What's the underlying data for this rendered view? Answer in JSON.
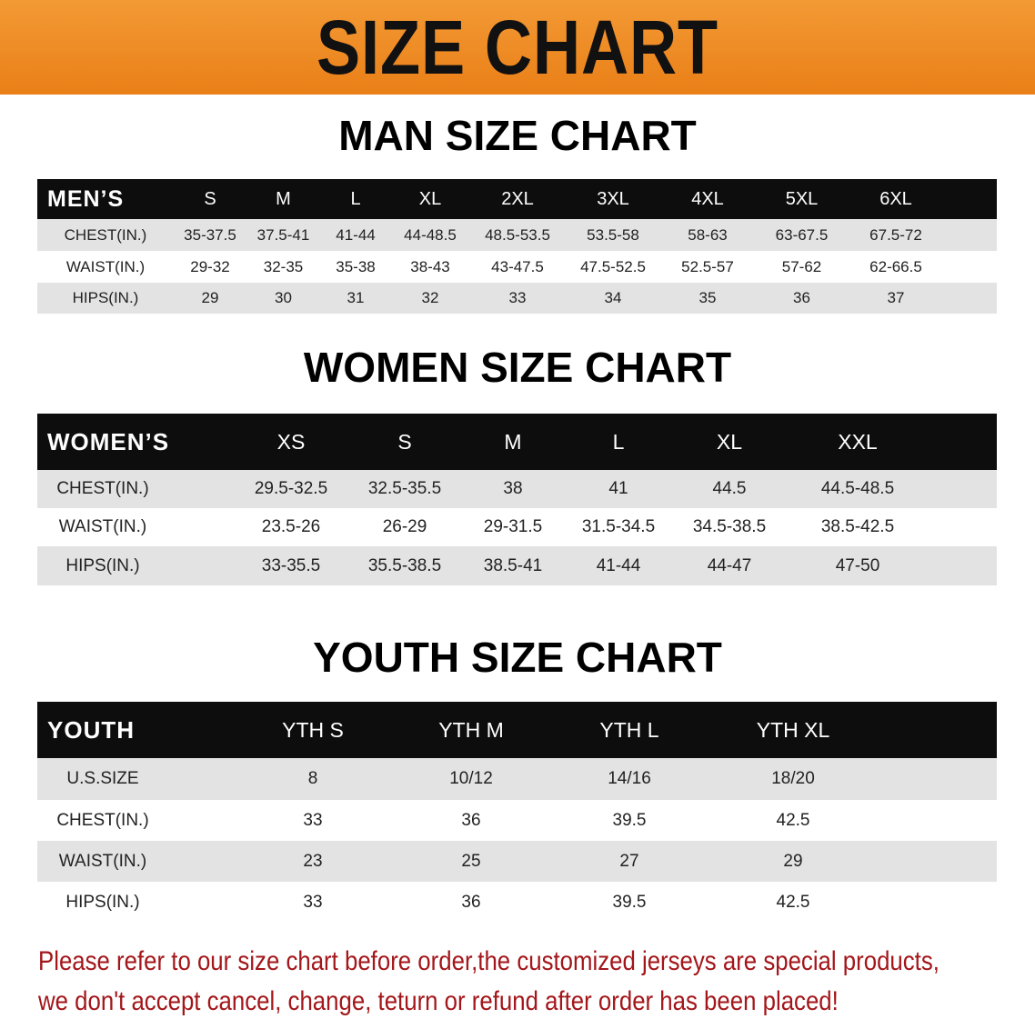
{
  "title": "SIZE CHART",
  "men": {
    "title": "MAN SIZE CHART",
    "header": "MEN’S",
    "sizes": [
      "S",
      "M",
      "L",
      "XL",
      "2XL",
      "3XL",
      "4XL",
      "5XL",
      "6XL"
    ],
    "rows": [
      {
        "label": "CHEST(IN.)",
        "values": [
          "35-37.5",
          "37.5-41",
          "41-44",
          "44-48.5",
          "48.5-53.5",
          "53.5-58",
          "58-63",
          "63-67.5",
          "67.5-72"
        ]
      },
      {
        "label": "WAIST(IN.)",
        "values": [
          "29-32",
          "32-35",
          "35-38",
          "38-43",
          "43-47.5",
          "47.5-52.5",
          "52.5-57",
          "57-62",
          "62-66.5"
        ]
      },
      {
        "label": "HIPS(IN.)",
        "values": [
          "29",
          "30",
          "31",
          "32",
          "33",
          "34",
          "35",
          "36",
          "37"
        ]
      }
    ]
  },
  "women": {
    "title": "WOMEN SIZE CHART",
    "header": "WOMEN’S",
    "sizes": [
      "XS",
      "S",
      "M",
      "L",
      "XL",
      "XXL"
    ],
    "rows": [
      {
        "label": "CHEST(IN.)",
        "values": [
          "29.5-32.5",
          "32.5-35.5",
          "38",
          "41",
          "44.5",
          "44.5-48.5"
        ]
      },
      {
        "label": "WAIST(IN.)",
        "values": [
          "23.5-26",
          "26-29",
          "29-31.5",
          "31.5-34.5",
          "34.5-38.5",
          "38.5-42.5"
        ]
      },
      {
        "label": "HIPS(IN.)",
        "values": [
          "33-35.5",
          "35.5-38.5",
          "38.5-41",
          "41-44",
          "44-47",
          "47-50"
        ]
      }
    ]
  },
  "youth": {
    "title": "YOUTH SIZE CHART",
    "header": "YOUTH",
    "sizes": [
      "YTH S",
      "YTH M",
      "YTH L",
      "YTH XL"
    ],
    "rows": [
      {
        "label": "U.S.SIZE",
        "values": [
          "8",
          "10/12",
          "14/16",
          "18/20"
        ]
      },
      {
        "label": "CHEST(IN.)",
        "values": [
          "33",
          "36",
          "39.5",
          "42.5"
        ]
      },
      {
        "label": "WAIST(IN.)",
        "values": [
          "23",
          "25",
          "27",
          "29"
        ]
      },
      {
        "label": "HIPS(IN.)",
        "values": [
          "33",
          "36",
          "39.5",
          "42.5"
        ]
      }
    ]
  },
  "notice": [
    "Please refer to our size chart before order,the customized jerseys are special products,",
    "we don't accept cancel, change, teturn or refund after order has been placed!"
  ],
  "colors": {
    "banner": "#ee8a22",
    "header_row": "#0d0d0d",
    "grey_row": "#e3e3e3",
    "notice": "#a3161a"
  }
}
